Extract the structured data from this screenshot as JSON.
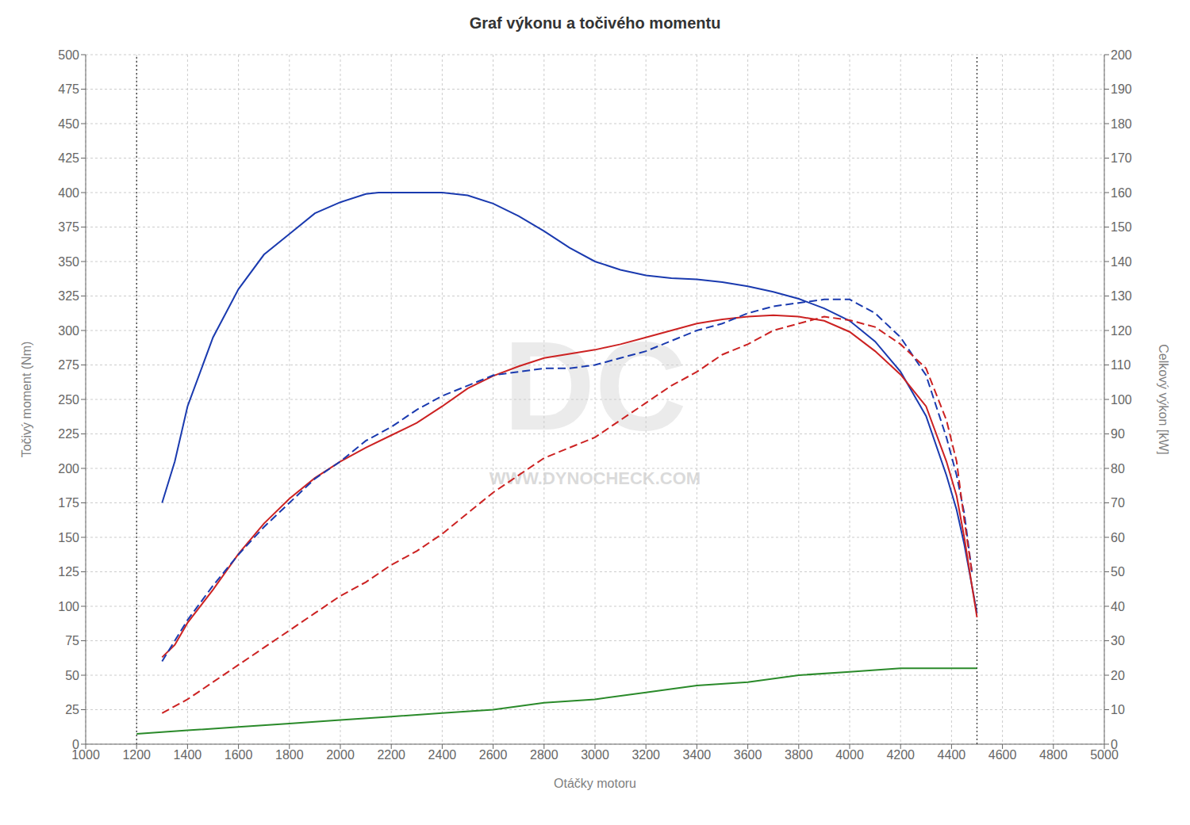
{
  "chart_data": {
    "type": "line",
    "title": "Graf výkonu a točivého momentu",
    "xlabel": "Otáčky motoru",
    "ylabel": "Točivý moment (Nm)",
    "y2label": "Celkový výkon [kW]",
    "xlim": [
      1000,
      5000
    ],
    "ylim": [
      0,
      500
    ],
    "y2lim": [
      0,
      200
    ],
    "xticks": [
      1000,
      1200,
      1400,
      1600,
      1800,
      2000,
      2200,
      2400,
      2600,
      2800,
      3000,
      3200,
      3400,
      3600,
      3800,
      4000,
      4200,
      4400,
      4600,
      4800,
      5000
    ],
    "yticks": [
      0,
      25,
      50,
      75,
      100,
      125,
      150,
      175,
      200,
      225,
      250,
      275,
      300,
      325,
      350,
      375,
      400,
      425,
      450,
      475,
      500
    ],
    "y2ticks": [
      0,
      10,
      20,
      30,
      40,
      50,
      60,
      70,
      80,
      90,
      100,
      110,
      120,
      130,
      140,
      150,
      160,
      170,
      180,
      190,
      200
    ],
    "grid": true,
    "series": [
      {
        "color": "#1a3aaf",
        "line_style": "solid",
        "x": [
          1300,
          1350,
          1400,
          1500,
          1600,
          1700,
          1800,
          1900,
          2000,
          2100,
          2150,
          2200,
          2300,
          2400,
          2500,
          2600,
          2700,
          2800,
          2900,
          3000,
          3100,
          3200,
          3300,
          3400,
          3500,
          3600,
          3700,
          3800,
          3900,
          4000,
          4100,
          4200,
          4300,
          4380,
          4420,
          4450,
          4480,
          4500
        ],
        "values": [
          175,
          205,
          245,
          295,
          330,
          355,
          370,
          385,
          393,
          399,
          400,
          400,
          400,
          400,
          398,
          392,
          383,
          372,
          360,
          350,
          344,
          340,
          338,
          337,
          335,
          332,
          328,
          323,
          316,
          307,
          292,
          270,
          238,
          195,
          170,
          145,
          115,
          95
        ]
      },
      {
        "color": "#cc2222",
        "line_style": "solid",
        "x": [
          1300,
          1350,
          1400,
          1500,
          1600,
          1700,
          1800,
          1900,
          2000,
          2100,
          2200,
          2300,
          2400,
          2500,
          2600,
          2700,
          2800,
          2900,
          3000,
          3100,
          3200,
          3300,
          3400,
          3500,
          3600,
          3700,
          3800,
          3900,
          4000,
          4100,
          4200,
          4300,
          4380,
          4420,
          4450,
          4480,
          4500
        ],
        "values": [
          63,
          72,
          88,
          112,
          138,
          160,
          178,
          193,
          205,
          215,
          224,
          233,
          245,
          258,
          267,
          274,
          280,
          283,
          286,
          290,
          295,
          300,
          305,
          308,
          310,
          311,
          310,
          307,
          299,
          285,
          268,
          245,
          205,
          180,
          150,
          115,
          92
        ]
      },
      {
        "color": "#1a3aaf",
        "line_style": "dashed",
        "axis": "y2",
        "x": [
          1300,
          1400,
          1500,
          1600,
          1700,
          1800,
          1900,
          2000,
          2100,
          2200,
          2300,
          2400,
          2500,
          2600,
          2700,
          2800,
          2900,
          3000,
          3100,
          3200,
          3300,
          3400,
          3500,
          3600,
          3700,
          3800,
          3900,
          4000,
          4100,
          4200,
          4300,
          4380,
          4420,
          4450,
          4480
        ],
        "values": [
          24,
          36,
          46,
          55,
          63,
          70,
          77,
          82,
          88,
          92,
          97,
          101,
          104,
          107,
          108,
          109,
          109,
          110,
          112,
          114,
          117,
          120,
          122,
          125,
          127,
          128,
          129,
          129,
          125,
          118,
          107,
          89,
          78,
          67,
          50
        ]
      },
      {
        "color": "#cc2222",
        "line_style": "dashed",
        "axis": "y2",
        "x": [
          1300,
          1400,
          1500,
          1600,
          1700,
          1800,
          1900,
          2000,
          2100,
          2200,
          2300,
          2400,
          2500,
          2600,
          2700,
          2800,
          2900,
          3000,
          3100,
          3200,
          3300,
          3400,
          3500,
          3600,
          3700,
          3800,
          3900,
          4000,
          4100,
          4200,
          4300,
          4380,
          4420,
          4450,
          4480
        ],
        "values": [
          9,
          13,
          18,
          23,
          28,
          33,
          38,
          43,
          47,
          52,
          56,
          61,
          67,
          73,
          78,
          83,
          86,
          89,
          94,
          99,
          104,
          108,
          113,
          116,
          120,
          122,
          124,
          123,
          121,
          116,
          109,
          94,
          82,
          65,
          50
        ]
      },
      {
        "color": "#2a8a2a",
        "line_style": "solid",
        "axis": "y2",
        "x": [
          1200,
          1400,
          1600,
          1800,
          2000,
          2200,
          2400,
          2600,
          2800,
          3000,
          3200,
          3400,
          3600,
          3800,
          4000,
          4200,
          4400,
          4500
        ],
        "values": [
          3,
          4,
          5,
          6,
          7,
          8,
          9,
          10,
          12,
          13,
          15,
          17,
          18,
          20,
          21,
          22,
          22,
          22
        ]
      }
    ],
    "vlines": [
      1200,
      4500
    ],
    "annotations": [
      "DC",
      "WWW.DYNOCHECK.COM"
    ]
  }
}
